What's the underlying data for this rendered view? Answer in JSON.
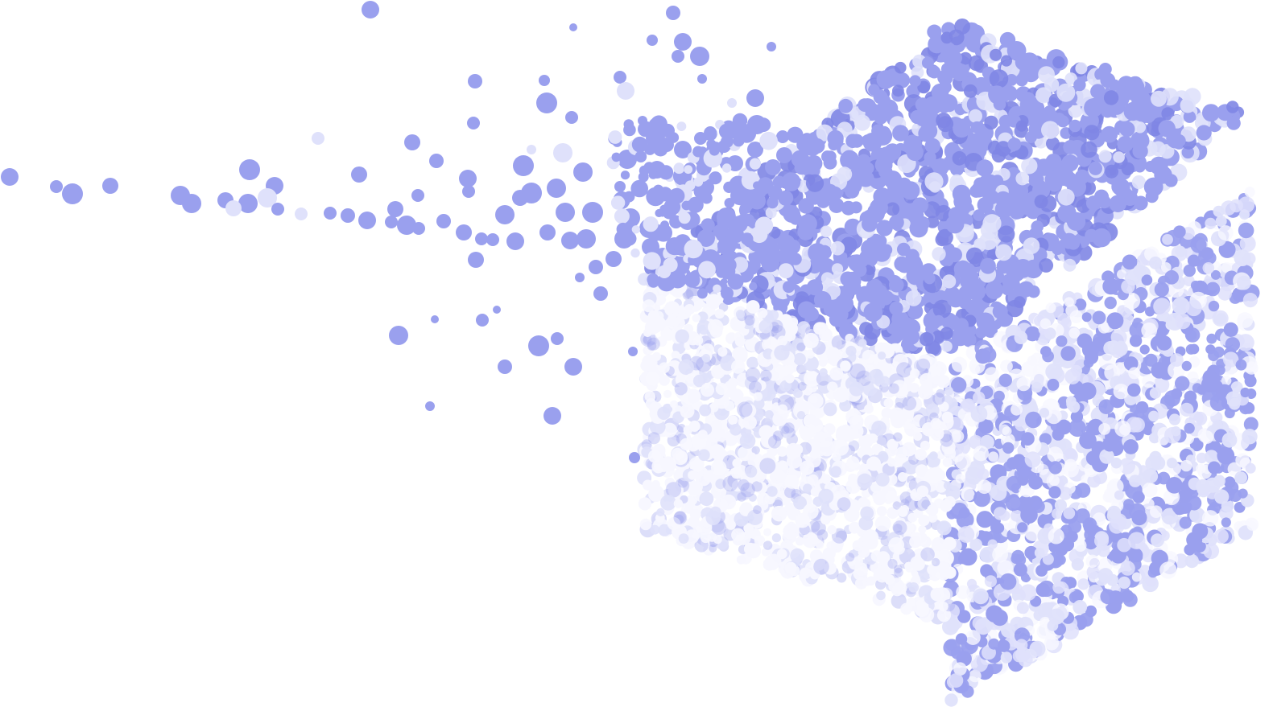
{
  "image": {
    "subject": "particle-cube",
    "colors": {
      "background": "#ffffff",
      "particle_primary": "#9aa0ee",
      "particle_light": "#dfe1fb",
      "particle_white": "#f7f7ff",
      "particle_shadow": "#7f86e4"
    }
  }
}
